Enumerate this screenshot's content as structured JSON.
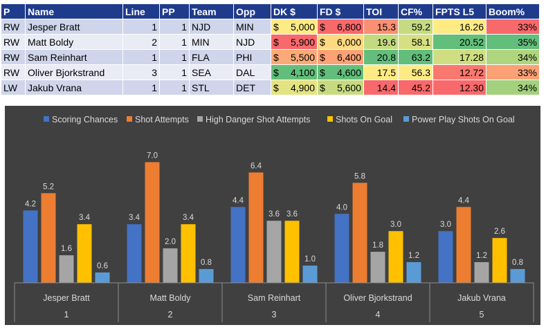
{
  "table": {
    "headers": [
      "P",
      "Name",
      "Line",
      "PP",
      "Team",
      "Opp",
      "DK $",
      "FD $",
      "TOI",
      "CF%",
      "FPTS L5",
      "Boom%"
    ],
    "rows": [
      {
        "pos": "RW",
        "name": "Jesper Bratt",
        "line": "1",
        "pp": "1",
        "team": "NJD",
        "opp": "MIN",
        "dk": "5,000",
        "fd": "6,800",
        "toi": "15.3",
        "cf": "59.2",
        "fpts": "16.26",
        "boom": "33%"
      },
      {
        "pos": "RW",
        "name": "Matt Boldy",
        "line": "2",
        "pp": "1",
        "team": "MIN",
        "opp": "NJD",
        "dk": "5,900",
        "fd": "6,000",
        "toi": "19.6",
        "cf": "58.1",
        "fpts": "20.52",
        "boom": "35%"
      },
      {
        "pos": "RW",
        "name": "Sam Reinhart",
        "line": "1",
        "pp": "1",
        "team": "FLA",
        "opp": "PHI",
        "dk": "5,500",
        "fd": "6,400",
        "toi": "20.8",
        "cf": "63.2",
        "fpts": "17.28",
        "boom": "34%"
      },
      {
        "pos": "RW",
        "name": "Oliver Bjorkstrand",
        "line": "3",
        "pp": "1",
        "team": "SEA",
        "opp": "DAL",
        "dk": "4,100",
        "fd": "4,600",
        "toi": "17.5",
        "cf": "56.3",
        "fpts": "12.72",
        "boom": "33%"
      },
      {
        "pos": "LW",
        "name": "Jakub Vrana",
        "line": "1",
        "pp": "1",
        "team": "STL",
        "opp": "DET",
        "dk": "4,900",
        "fd": "5,600",
        "toi": "14.4",
        "cf": "45.2",
        "fpts": "12.30",
        "boom": "34%"
      }
    ],
    "currency_symbol": "$",
    "cell_colors": {
      "dk": [
        "#ffeb84",
        "#f8696b",
        "#fbaa77",
        "#63be7b",
        "#e4e383"
      ],
      "fd": [
        "#f8696b",
        "#fed980",
        "#fba276",
        "#63be7b",
        "#c6db81"
      ],
      "toi": [
        "#fa9073",
        "#c4da80",
        "#63be7b",
        "#ffeb84",
        "#f8696b"
      ],
      "cf": [
        "#c5db81",
        "#d6e082",
        "#63be7b",
        "#ffeb84",
        "#f8696b"
      ],
      "fpts": [
        "#ffeb84",
        "#63be7b",
        "#d0de82",
        "#f9786f",
        "#f8696b"
      ],
      "boom": [
        "#f8696b",
        "#63be7b",
        "#b0d57f",
        "#fba176",
        "#a4d17e"
      ]
    }
  },
  "chart_data": {
    "type": "bar",
    "title": "",
    "xlabel": "",
    "ylabel": "",
    "ylim": [
      0,
      7.5
    ],
    "grid": false,
    "legend_position": "top",
    "categories": [
      "Jesper Bratt",
      "Matt Boldy",
      "Sam Reinhart",
      "Oliver Bjorkstrand",
      "Jakub Vrana"
    ],
    "category_indices": [
      "1",
      "2",
      "3",
      "4",
      "5"
    ],
    "series": [
      {
        "name": "Scoring Chances",
        "color": "#4472c4",
        "values": [
          4.2,
          3.4,
          4.4,
          4.0,
          3.0
        ]
      },
      {
        "name": "Shot Attempts",
        "color": "#ed7d31",
        "values": [
          5.2,
          7.0,
          6.4,
          5.8,
          4.4
        ]
      },
      {
        "name": "High Danger Shot Attempts",
        "color": "#a5a5a5",
        "values": [
          1.6,
          2.0,
          3.6,
          1.8,
          1.2
        ]
      },
      {
        "name": "Shots On Goal",
        "color": "#ffc000",
        "values": [
          3.4,
          3.4,
          3.6,
          3.0,
          2.6
        ]
      },
      {
        "name": "Power Play Shots On Goal",
        "color": "#5b9bd5",
        "values": [
          0.6,
          0.8,
          1.0,
          1.2,
          0.8
        ]
      }
    ]
  }
}
